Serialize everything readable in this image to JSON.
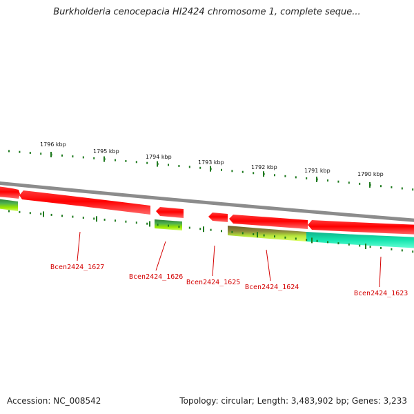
{
  "title": "Burkholderia cenocepacia HI2424 chromosome 1, complete seque...",
  "footer": {
    "accession": "Accession: NC_008542",
    "summary": "Topology: circular; Length: 3,483,902 bp; Genes: 3,233"
  },
  "ticks": [
    "1796 kbp",
    "1795 kbp",
    "1794 kbp",
    "1793 kbp",
    "1792 kbp",
    "1791 kbp",
    "1790 kbp"
  ],
  "genes": [
    "Bcen2424_1627",
    "Bcen2424_1626",
    "Bcen2424_1625",
    "Bcen2424_1624",
    "Bcen2424_1623"
  ],
  "colors": {
    "backbone": "#8c8c8c",
    "forward_gene": "#ff0000",
    "reverse_track_dark": "#2e7d32",
    "reverse_track_light": "#ccff33",
    "reverse_track_olive": "#7a7a2a",
    "reverse_track_teal": "#17e6b0",
    "tick_mark": "#1f7a1f",
    "gene_label": "#d40000"
  }
}
